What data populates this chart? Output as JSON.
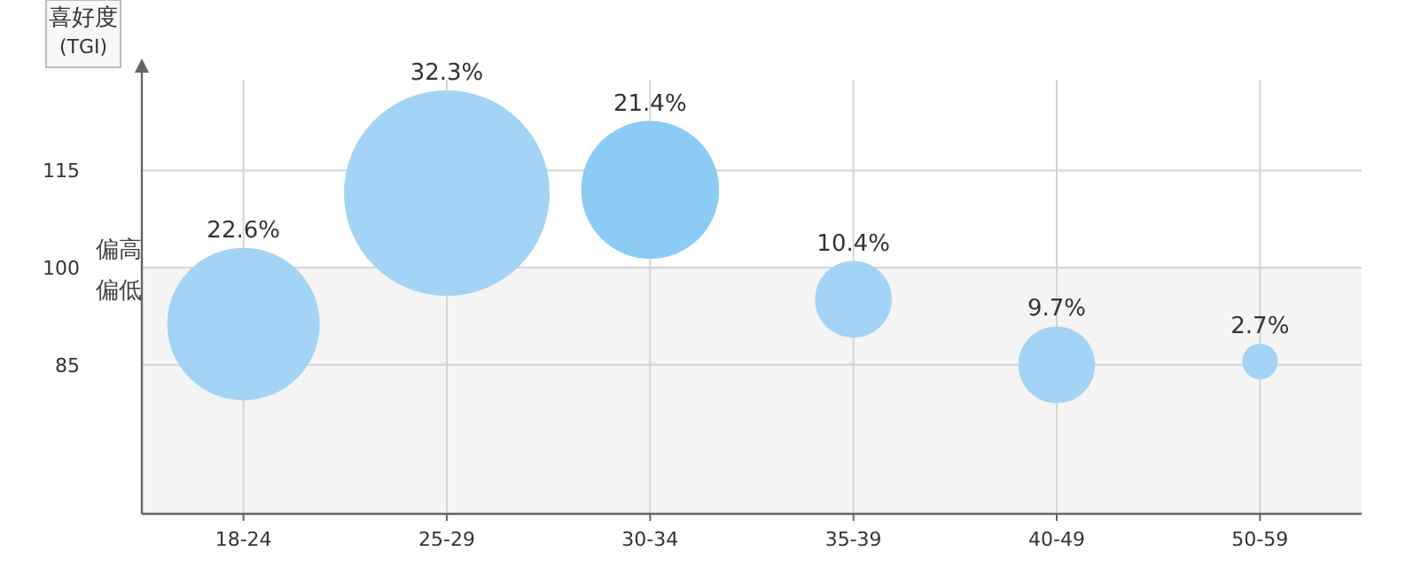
{
  "chart_data": {
    "type": "bubble",
    "ylabel": "喜好度\n(TGI)",
    "categories": [
      "18-24",
      "25-29",
      "30-34",
      "35-39",
      "40-49",
      "50-59"
    ],
    "series": [
      {
        "values": [
          91.3,
          111.5,
          112,
          95.1,
          85,
          85.5
        ],
        "sizes": [
          0.55,
          1,
          0.45,
          0.14,
          0.14,
          0.03
        ],
        "colors": [
          "#a3d4f5",
          "#a3d4f5",
          "#8ccbf3",
          "#a3d4f5",
          "#a3d4f5",
          "#a3d4f5"
        ]
      }
    ],
    "ylim": [
      62,
      129
    ],
    "yticks": [
      85,
      100,
      115
    ],
    "grid": true,
    "bands": [
      {
        "axis": "y",
        "from": 62,
        "to": 100,
        "label": "偏低",
        "color": "#f4f4f4"
      }
    ],
    "annotations": [
      "偏高",
      "22.6%",
      "32.3%",
      "21.4%",
      "10.4%",
      "9.7%",
      "2.7%"
    ]
  }
}
